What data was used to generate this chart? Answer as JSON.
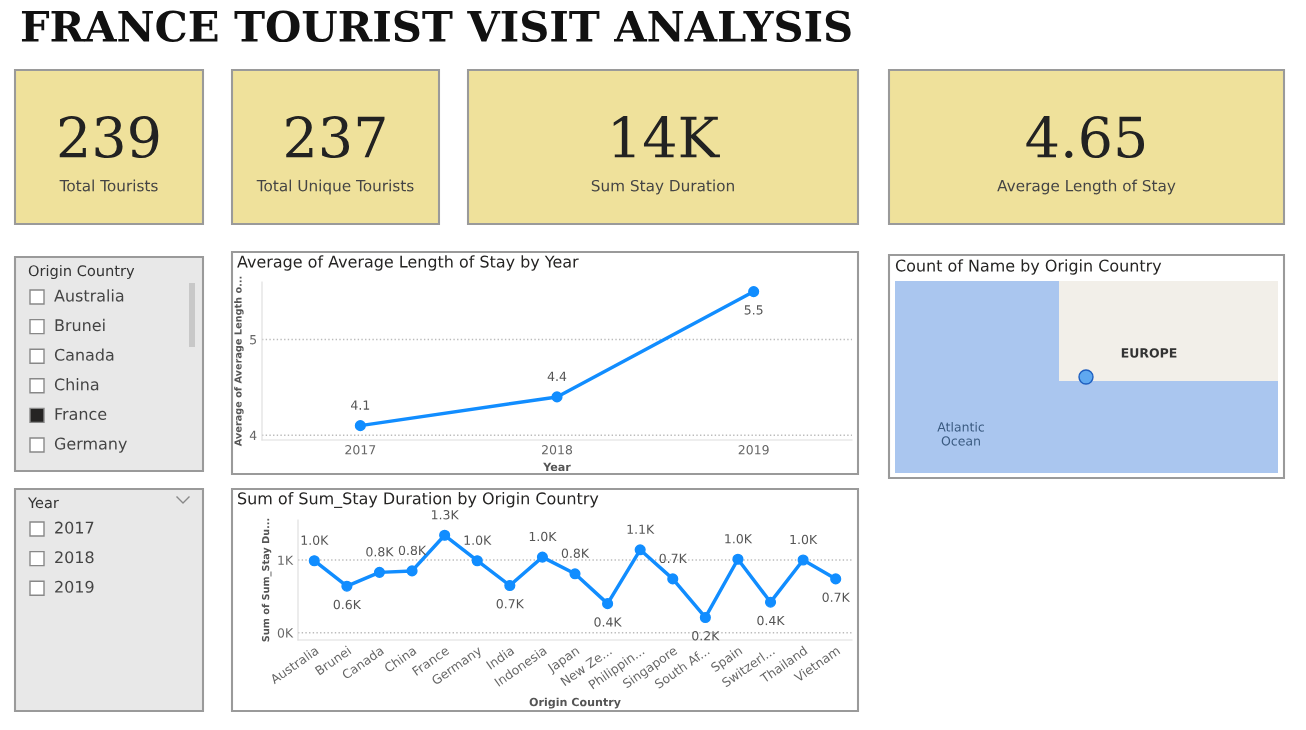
{
  "chart_data": [
    {
      "type": "other",
      "title": "FRANCE TOURIST VISIT ANALYSIS",
      "annotations": [
        "239",
        "Total Tourists",
        "237",
        "Total Unique Tourists",
        "14K",
        "Sum Stay Duration",
        "4.65",
        "Average Length of Stay"
      ]
    },
    {
      "type": "other",
      "title": "Origin Country",
      "categories": [
        "Australia",
        "Brunei",
        "Canada",
        "China",
        "France",
        "Germany"
      ],
      "colors": [
        "#ffffff",
        "#ffffff",
        "#ffffff",
        "#ffffff",
        "#252423",
        "#ffffff"
      ]
    },
    {
      "type": "other",
      "title": "Year",
      "categories": [
        "2017",
        "2018",
        "2019"
      ],
      "colors": [
        "#ffffff",
        "#ffffff",
        "#ffffff"
      ]
    },
    {
      "type": "line",
      "title": "Average of Average Length of Stay by Year",
      "xlabel": "Year",
      "ylabel": "Average of Average Length o...",
      "categories": [
        "2017",
        "2018",
        "2019"
      ],
      "series": [
        {
          "color": "#118dff",
          "values": [
            4.1,
            4.4,
            5.5
          ]
        }
      ],
      "ylim": [
        3.95,
        5.6
      ],
      "yticks": [
        4,
        5
      ],
      "grid": "y",
      "marker": "circle",
      "line_style": "solid",
      "data_labels": true,
      "legend": false
    },
    {
      "type": "line",
      "title": "Sum of Sum_Stay Duration by Origin Country",
      "xlabel": "Origin Country",
      "ylabel": "Sum of Sum_Stay Du...",
      "categories": [
        "Australia",
        "Brunei",
        "Canada",
        "China",
        "France",
        "Germany",
        "India",
        "Indonesia",
        "Japan",
        "New Ze...",
        "Philippin...",
        "Singapore",
        "South Af...",
        "Spain",
        "Switzerl...",
        "Thailand",
        "Vietnam"
      ],
      "series": [
        {
          "color": "#118dff",
          "values": [
            990,
            640,
            830,
            850,
            1340,
            990,
            650,
            1040,
            810,
            400,
            1140,
            740,
            210,
            1010,
            420,
            1000,
            740
          ],
          "value_labels": [
            "1.0K",
            "0.6K",
            "0.8K",
            "0.8K",
            "1.3K",
            "1.0K",
            "0.7K",
            "1.0K",
            "0.8K",
            "0.4K",
            "1.1K",
            "0.7K",
            "0.2K",
            "1.0K",
            "0.4K",
            "1.0K",
            "0.7K"
          ]
        }
      ],
      "ylim": [
        -100,
        1550
      ],
      "yticks": [
        {
          "value": 0,
          "label": "0K"
        },
        {
          "value": 1000,
          "label": "1K"
        }
      ],
      "grid": "y",
      "marker": "circle",
      "line_style": "solid",
      "legend": false
    },
    {
      "type": "other",
      "title": "Count of Name by Origin Country",
      "annotations": [
        "EUROPE",
        "Atlantic Ocean"
      ]
    }
  ]
}
